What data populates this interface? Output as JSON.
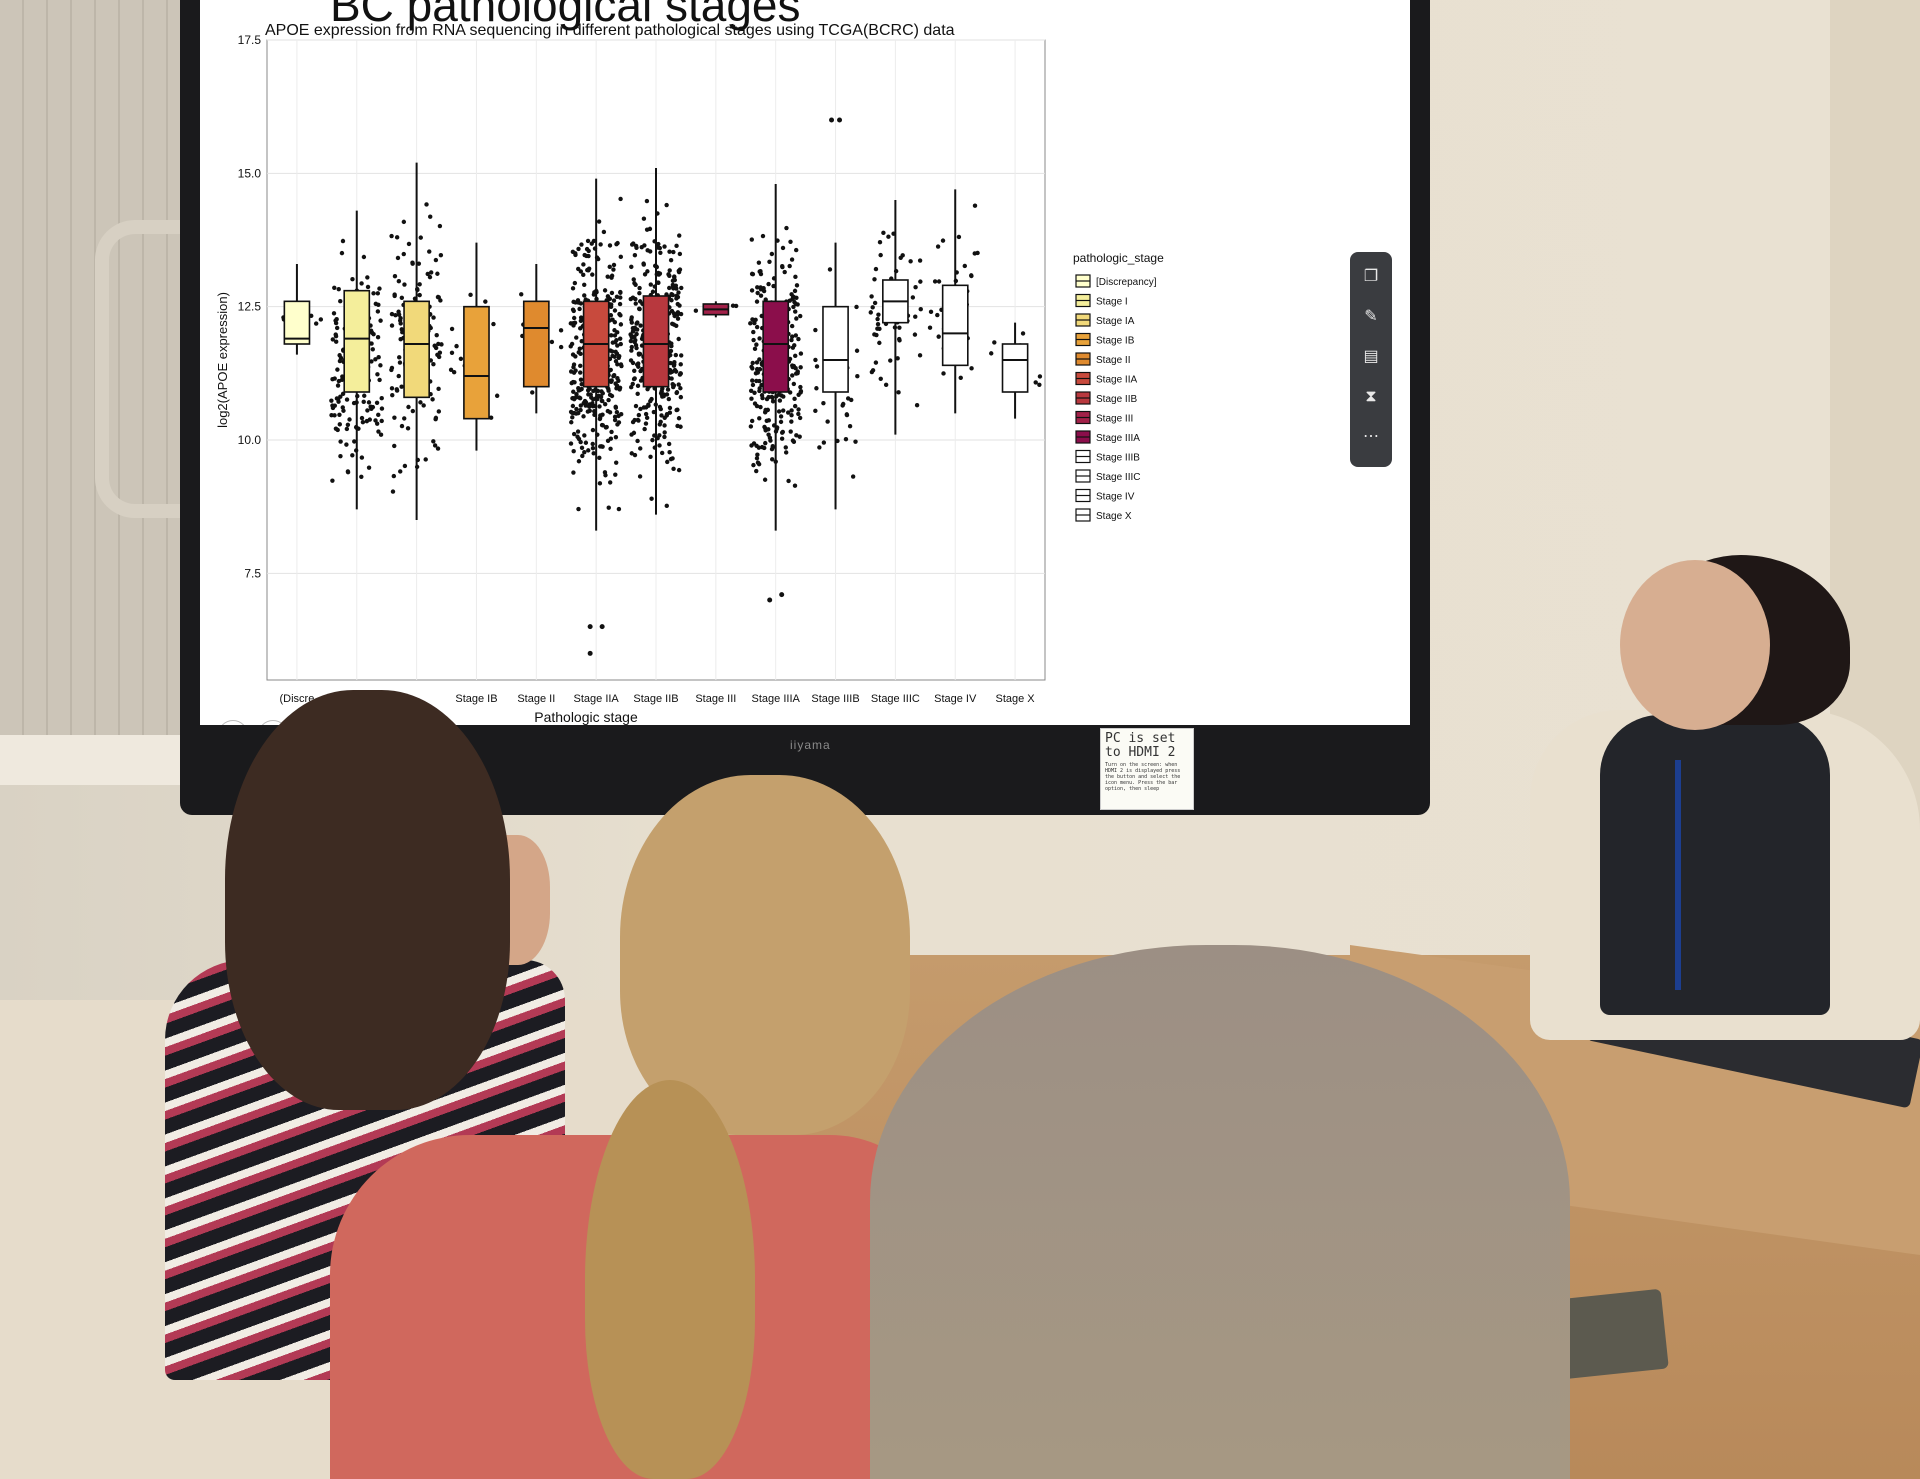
{
  "screen": {
    "slide_title_fragment": "BC pathological stages",
    "brand": "iiyama"
  },
  "sticky_note": {
    "headline": "PC is set to HDMI 2",
    "body": "Turn on the screen: when HDMI 2 is displayed press the button and select the icon menu. Press the bar option, then sleep"
  },
  "chart_data": {
    "type": "box",
    "title": "APOE expression from RNA sequencing in different pathological stages using TCGA(BCRC) data",
    "xlabel": "Pathologic stage",
    "ylabel": "log2(APOE expression)",
    "ylim": [
      5.5,
      17.5
    ],
    "yticks": [
      "7.5",
      "10.0",
      "12.5",
      "15.0",
      "17.5"
    ],
    "categories": [
      "[Discrepancy]",
      "Stage I",
      "Stage IA",
      "Stage IB",
      "Stage II",
      "Stage IIA",
      "Stage IIB",
      "Stage III",
      "Stage IIIA",
      "Stage IIIB",
      "Stage IIIC",
      "Stage IV",
      "Stage X"
    ],
    "visible_xtick_labels": [
      "(Discre",
      "Stage IB",
      "Stage II",
      "Stage IIA",
      "Stage IIB",
      "Stage III",
      "Stage IIIA",
      "Stage IIIB",
      "Stage IIIC",
      "Stage IV",
      "Stage X"
    ],
    "legend_title": "pathologic_stage",
    "legend_position": "right",
    "grid": true,
    "colors": [
      "#ffffcc",
      "#f4ee9b",
      "#f1d97a",
      "#e8a23a",
      "#df8a2e",
      "#c84a3d",
      "#b8383e",
      "#a22149",
      "#8b0e4b",
      "#ffffff",
      "#ffffff",
      "#ffffff",
      "#ffffff"
    ],
    "boxes": [
      {
        "stage": "[Discrepancy]",
        "min": 11.6,
        "q1": 11.8,
        "median": 11.9,
        "q3": 12.6,
        "max": 13.3
      },
      {
        "stage": "Stage I",
        "min": 8.7,
        "q1": 10.9,
        "median": 11.9,
        "q3": 12.8,
        "max": 14.3
      },
      {
        "stage": "Stage IA",
        "min": 8.5,
        "q1": 10.8,
        "median": 11.8,
        "q3": 12.6,
        "max": 15.2
      },
      {
        "stage": "Stage IB",
        "min": 9.8,
        "q1": 10.4,
        "median": 11.2,
        "q3": 12.5,
        "max": 13.7
      },
      {
        "stage": "Stage II",
        "min": 10.5,
        "q1": 11.0,
        "median": 12.1,
        "q3": 12.6,
        "max": 13.3
      },
      {
        "stage": "Stage IIA",
        "min": 8.3,
        "q1": 11.0,
        "median": 11.8,
        "q3": 12.6,
        "max": 14.9
      },
      {
        "stage": "Stage IIB",
        "min": 8.6,
        "q1": 11.0,
        "median": 11.8,
        "q3": 12.7,
        "max": 15.1
      },
      {
        "stage": "Stage III",
        "min": 12.3,
        "q1": 12.35,
        "median": 12.45,
        "q3": 12.55,
        "max": 12.6
      },
      {
        "stage": "Stage IIIA",
        "min": 8.3,
        "q1": 10.9,
        "median": 11.8,
        "q3": 12.6,
        "max": 14.8
      },
      {
        "stage": "Stage IIIB",
        "min": 8.7,
        "q1": 10.9,
        "median": 11.5,
        "q3": 12.5,
        "max": 13.7
      },
      {
        "stage": "Stage IIIC",
        "min": 10.1,
        "q1": 12.2,
        "median": 12.6,
        "q3": 13.0,
        "max": 14.5
      },
      {
        "stage": "Stage IV",
        "min": 10.5,
        "q1": 11.4,
        "median": 12.0,
        "q3": 12.9,
        "max": 14.7
      },
      {
        "stage": "Stage X",
        "min": 10.4,
        "q1": 10.9,
        "median": 11.5,
        "q3": 11.8,
        "max": 12.2
      }
    ],
    "outliers_high": [
      16.0,
      16.0
    ],
    "outliers_low": [
      6.5,
      6.5,
      7.0,
      7.1,
      6.0
    ]
  }
}
